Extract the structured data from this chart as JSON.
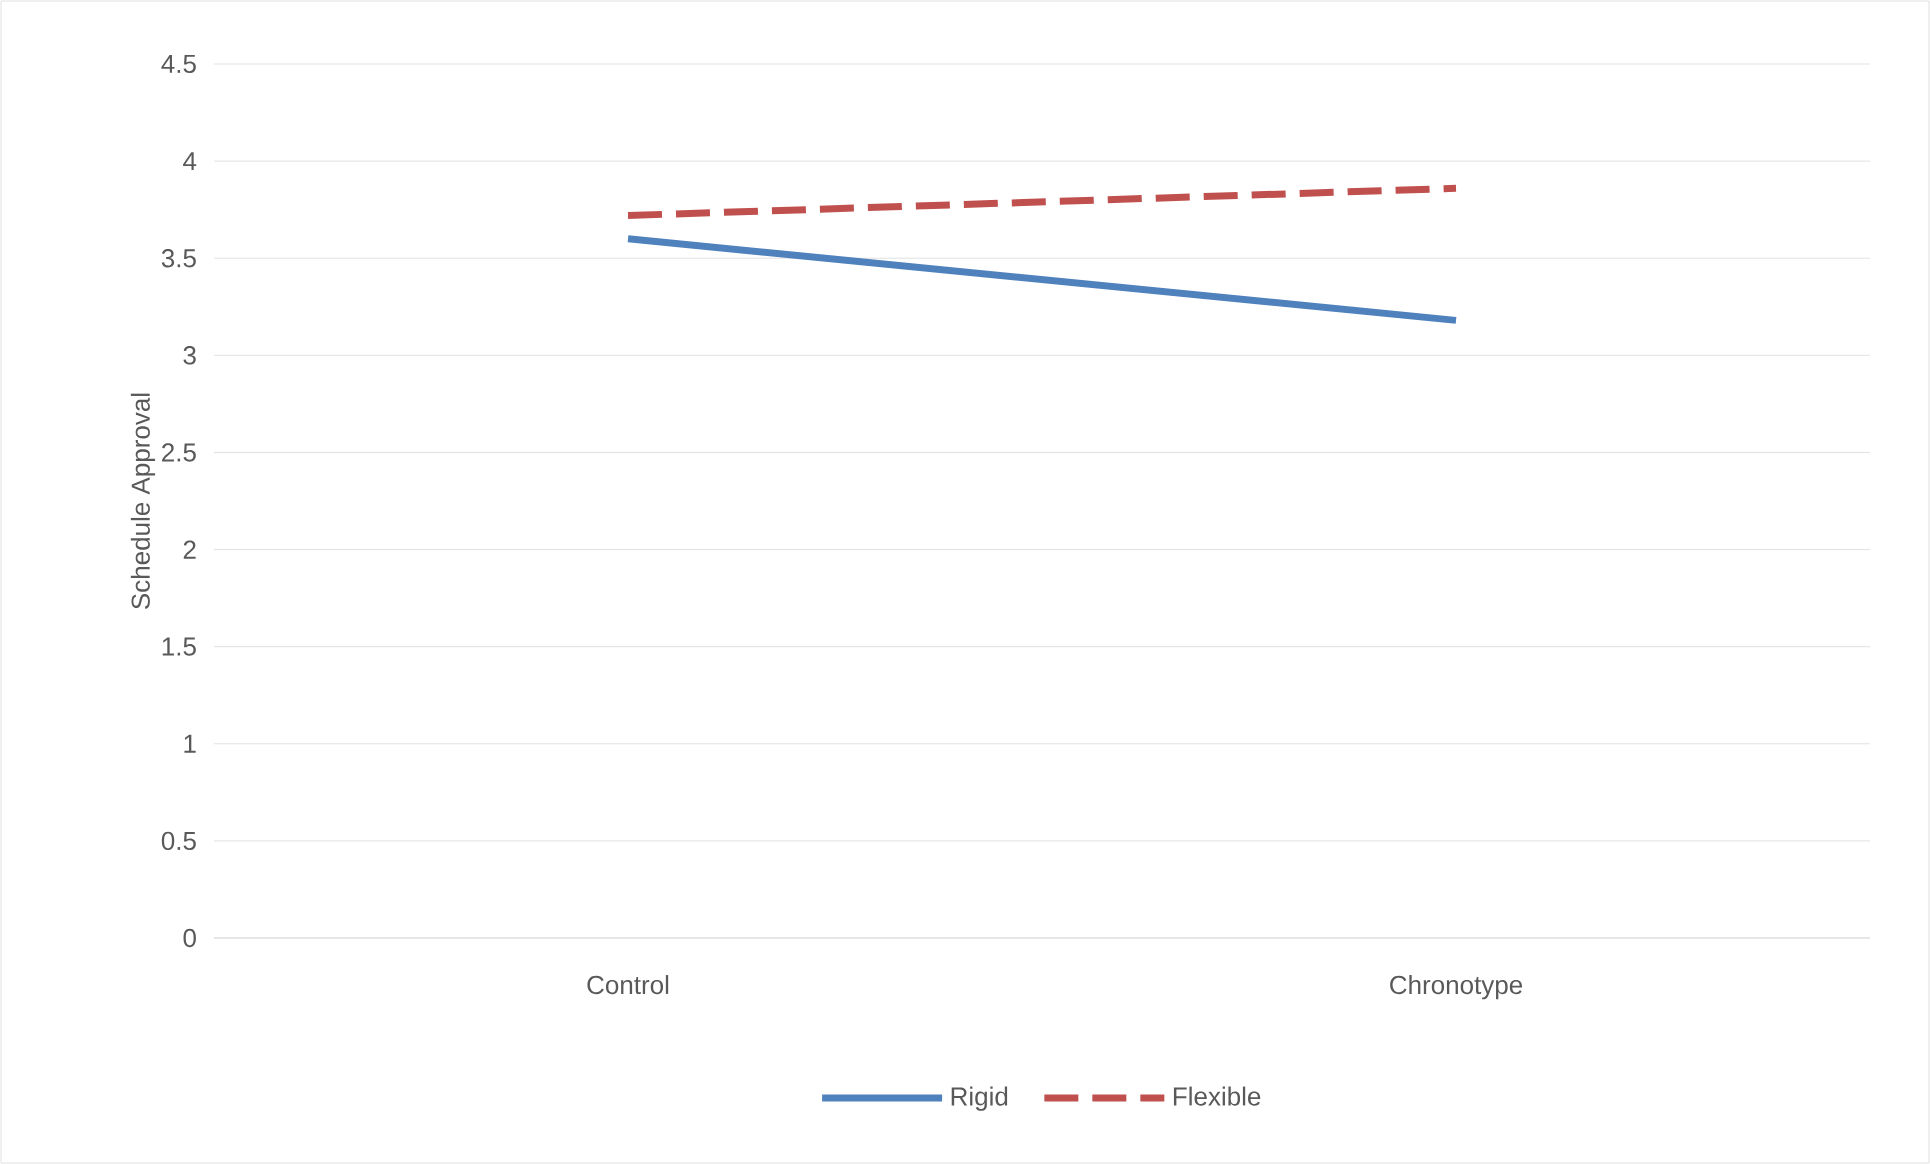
{
  "chart_data": {
    "type": "line",
    "ylabel": "Schedule Approval",
    "categories": [
      "Control",
      "Chronotype"
    ],
    "series": [
      {
        "name": "Rigid",
        "color": "#4f81bd",
        "values": [
          3.6,
          3.18
        ],
        "line_style": "solid"
      },
      {
        "name": "Flexible",
        "color": "#c0504d",
        "values": [
          3.72,
          3.86
        ],
        "line_style": "dashed"
      }
    ],
    "ylim": [
      0,
      4.5
    ],
    "yticks": [
      0,
      0.5,
      1,
      1.5,
      2,
      2.5,
      3,
      3.5,
      4,
      4.5
    ],
    "grid": "y",
    "legend": "bottom"
  }
}
